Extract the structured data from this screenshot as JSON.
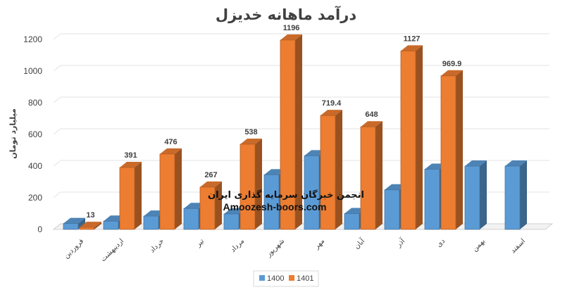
{
  "chart_data": {
    "type": "bar",
    "title": "درآمد ماهانه خدیزل",
    "xlabel": "",
    "ylabel": "میلیارد تومان",
    "ylim": [
      0,
      1200
    ],
    "yticks": [
      0,
      200,
      400,
      600,
      800,
      1000,
      1200
    ],
    "grid": true,
    "legend_position": "bottom",
    "categories": [
      "فروردین",
      "اردیبهشت",
      "خرداد",
      "تیر",
      "مرداد",
      "شهریور",
      "مهر",
      "آبان",
      "آذر",
      "دی",
      "بهمن",
      "اسفند"
    ],
    "series": [
      {
        "name": "1400",
        "color": "#5b9bd5",
        "values": [
          37,
          52,
          84,
          132,
          98,
          345,
          465,
          100,
          250,
          380,
          400,
          400
        ]
      },
      {
        "name": "1401",
        "color": "#ed7d31",
        "values": [
          13,
          391,
          476,
          267,
          538,
          1196,
          719.4,
          648,
          1127,
          969.9,
          null,
          null
        ]
      }
    ],
    "data_labels": [
      "13",
      "391",
      "476",
      "267",
      "538",
      "1196",
      "719.4",
      "648",
      "1127",
      "969.9"
    ]
  },
  "watermark": {
    "line1": "انجمن خبرگان سرمایه گذاری ایران",
    "line2": "Amoozesh-boors.com"
  }
}
